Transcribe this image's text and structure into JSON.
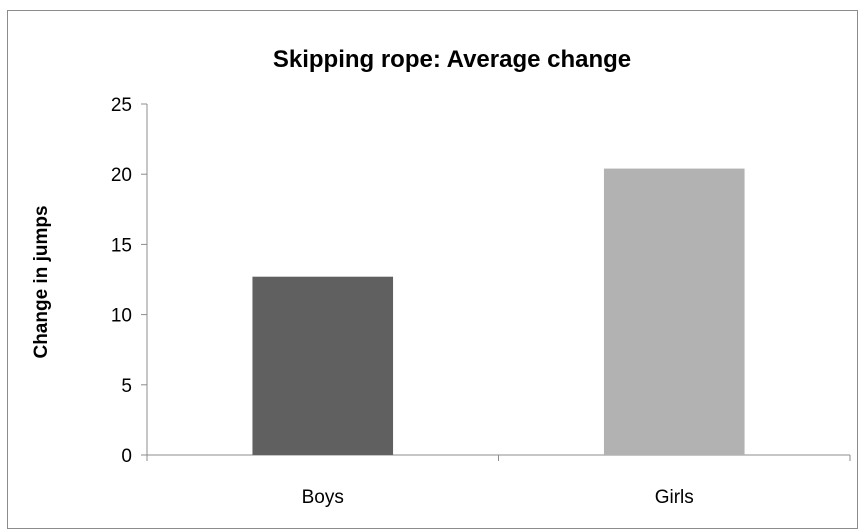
{
  "chart_data": {
    "type": "bar",
    "title": "Skipping rope: Average change",
    "xlabel": "",
    "ylabel": "Change in jumps",
    "categories": [
      "Boys",
      "Girls"
    ],
    "values": [
      12.7,
      20.4
    ],
    "ylim": [
      0,
      25
    ],
    "yticks": [
      0,
      5,
      10,
      15,
      20,
      25
    ],
    "grid": false,
    "legend": "none",
    "bar_colors": [
      "#606060",
      "#b2b2b2"
    ]
  }
}
